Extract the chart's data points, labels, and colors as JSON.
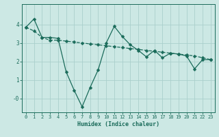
{
  "xlabel": "Humidex (Indice chaleur)",
  "bg_color": "#cce8e4",
  "line_color": "#1a6b5a",
  "grid_color": "#aacfcc",
  "x": [
    0,
    1,
    2,
    3,
    4,
    5,
    6,
    7,
    8,
    9,
    10,
    11,
    12,
    13,
    14,
    15,
    16,
    17,
    18,
    19,
    20,
    21,
    22,
    23
  ],
  "y_jagged": [
    3.85,
    4.3,
    3.3,
    3.3,
    3.25,
    1.45,
    0.45,
    -0.45,
    0.6,
    1.55,
    3.0,
    3.9,
    3.35,
    2.9,
    2.6,
    2.25,
    2.6,
    2.2,
    2.45,
    2.4,
    2.3,
    1.6,
    2.1,
    2.1
  ],
  "y_trend": [
    3.85,
    3.65,
    3.3,
    3.15,
    3.15,
    3.1,
    3.05,
    3.0,
    2.95,
    2.9,
    2.85,
    2.8,
    2.75,
    2.7,
    2.65,
    2.6,
    2.55,
    2.5,
    2.45,
    2.4,
    2.35,
    2.3,
    2.2,
    2.1
  ],
  "ylim": [
    -0.75,
    5.1
  ],
  "xlim": [
    -0.5,
    23.5
  ],
  "yticks": [
    0,
    1,
    2,
    3,
    4
  ],
  "ytick_labels": [
    "-0",
    "1",
    "2",
    "3",
    "4"
  ],
  "xtick_labels": [
    "0",
    "1",
    "2",
    "3",
    "4",
    "5",
    "6",
    "7",
    "8",
    "9",
    "10",
    "11",
    "12",
    "13",
    "14",
    "15",
    "16",
    "17",
    "18",
    "19",
    "20",
    "21",
    "22",
    "23"
  ],
  "markersize": 2.5,
  "linewidth": 0.9,
  "tick_fontsize": 5.0,
  "xlabel_fontsize": 6.0,
  "ytick_fontsize": 5.5
}
